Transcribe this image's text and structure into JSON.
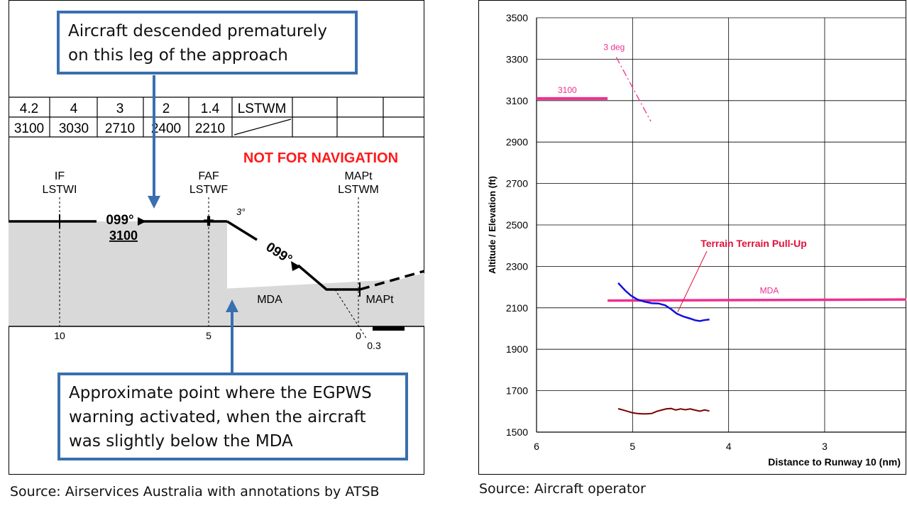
{
  "left_panel": {
    "callout_top": "Aircraft descended prematurely on this leg of the approach",
    "callout_bottom": "Approximate point where the EGPWS warning activated, when the aircraft was slightly below the MDA",
    "not_for_nav": "NOT FOR NAVIGATION",
    "table": {
      "distances": [
        "4.2",
        "4",
        "3",
        "2",
        "1.4",
        "LSTWM"
      ],
      "altitudes": [
        "3100",
        "3030",
        "2710",
        "2400",
        "2210"
      ]
    },
    "fixes": {
      "if_label": "IF",
      "if_name": "LSTWI",
      "faf_label": "FAF",
      "faf_name": "LSTWF",
      "mapt_label": "MAPt",
      "mapt_name": "LSTWM"
    },
    "course_1": "099°",
    "altitude_1": "3100",
    "glide_angle": "3°",
    "course_2": "099°",
    "mda_label": "MDA",
    "mapt_label": "MAPt",
    "axis_ticks": [
      "10",
      "5",
      "0"
    ],
    "axis_sub": "0.3",
    "source": "Source: Airservices Australia with annotations by ATSB"
  },
  "chart_data": {
    "type": "line",
    "xlabel": "Distance to Runway 10 (nm)",
    "ylabel": "Altitude / Elevation (ft)",
    "xlim": [
      6,
      2.15
    ],
    "ylim": [
      1500,
      3500
    ],
    "x_ticks": [
      6,
      5,
      4,
      3
    ],
    "y_ticks": [
      1500,
      1700,
      1900,
      2100,
      2300,
      2500,
      2700,
      2900,
      3100,
      3300,
      3500
    ],
    "grid": true,
    "colors": {
      "reference": "#ee2f8f",
      "aircraft": "#1010e0",
      "terrain": "#7a0000",
      "annotation": "#e0103a"
    },
    "series": [
      {
        "name": "3100",
        "points": [
          [
            6.0,
            3110
          ],
          [
            5.26,
            3110
          ]
        ]
      },
      {
        "name": "3 deg",
        "points": [
          [
            5.17,
            3310
          ],
          [
            4.81,
            3000
          ]
        ]
      },
      {
        "name": "MDA",
        "points": [
          [
            5.26,
            2135
          ],
          [
            2.15,
            2140
          ]
        ]
      },
      {
        "points": [
          [
            5.15,
            2220
          ],
          [
            5.08,
            2185
          ],
          [
            5.02,
            2160
          ],
          [
            4.95,
            2140
          ],
          [
            4.88,
            2130
          ],
          [
            4.8,
            2122
          ],
          [
            4.73,
            2121
          ],
          [
            4.66,
            2112
          ],
          [
            4.6,
            2094
          ],
          [
            4.54,
            2072
          ],
          [
            4.47,
            2058
          ],
          [
            4.4,
            2048
          ],
          [
            4.35,
            2040
          ],
          [
            4.3,
            2036
          ],
          [
            4.26,
            2040
          ],
          [
            4.2,
            2044
          ]
        ]
      },
      {
        "points": [
          [
            5.15,
            1613
          ],
          [
            5.1,
            1607
          ],
          [
            5.05,
            1600
          ],
          [
            5.0,
            1593
          ],
          [
            4.95,
            1590
          ],
          [
            4.9,
            1588
          ],
          [
            4.85,
            1588
          ],
          [
            4.8,
            1590
          ],
          [
            4.75,
            1600
          ],
          [
            4.7,
            1606
          ],
          [
            4.65,
            1612
          ],
          [
            4.6,
            1614
          ],
          [
            4.55,
            1607
          ],
          [
            4.5,
            1612
          ],
          [
            4.45,
            1608
          ],
          [
            4.4,
            1612
          ],
          [
            4.35,
            1606
          ],
          [
            4.3,
            1601
          ],
          [
            4.25,
            1607
          ],
          [
            4.2,
            1602
          ]
        ]
      }
    ],
    "annotations": [
      {
        "text": "Terrain Terrain Pull-Up",
        "points_to": [
          4.53,
          2080
        ]
      }
    ],
    "source": "Source: Aircraft operator"
  }
}
